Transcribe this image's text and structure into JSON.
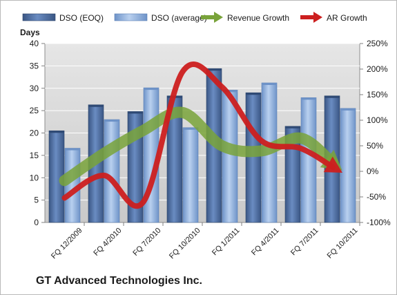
{
  "company_title": "GT Advanced Technologies Inc.",
  "colors": {
    "dso_eoq": "#4f6fa3",
    "dso_avg": "#8fb0de",
    "revenue_growth": "#79a33a",
    "ar_growth": "#cc1f1f",
    "plot_background": "#d9d9d9",
    "grid": "#ffffff"
  },
  "chart_data": {
    "type": "bar",
    "title": "",
    "categories": [
      "FQ 12/2009",
      "FQ 4/2010",
      "FQ 7/2010",
      "FQ 10/2010",
      "FQ 1/2011",
      "FQ 4/2011",
      "FQ 7/2011",
      "FQ 10/2011"
    ],
    "series": [
      {
        "name": "DSO (EOQ)",
        "axis": "left",
        "kind": "bar",
        "values": [
          20.5,
          26.3,
          24.8,
          28.3,
          34.4,
          29.0,
          21.5,
          28.3
        ]
      },
      {
        "name": "DSO (average)",
        "axis": "left",
        "kind": "bar",
        "values": [
          16.6,
          23.0,
          30.1,
          21.2,
          29.6,
          31.2,
          27.9,
          25.5
        ]
      },
      {
        "name": "Revenue Growth",
        "axis": "right",
        "kind": "arrow-line",
        "values": [
          -18,
          35,
          80,
          115,
          50,
          40,
          65,
          5
        ]
      },
      {
        "name": "AR Growth",
        "axis": "right",
        "kind": "arrow-line",
        "values": [
          -52,
          -8,
          -60,
          195,
          165,
          60,
          45,
          0
        ]
      }
    ],
    "y_left": {
      "label": "Days",
      "min": 0,
      "max": 40,
      "ticks": [
        "0",
        "5",
        "10",
        "15",
        "20",
        "25",
        "30",
        "35",
        "40"
      ]
    },
    "y_right": {
      "label": "",
      "min": -100,
      "max": 250,
      "ticks": [
        "-100%",
        "-50%",
        "0%",
        "50%",
        "100%",
        "150%",
        "200%",
        "250%"
      ]
    },
    "grid": true,
    "legend_position": "top"
  }
}
